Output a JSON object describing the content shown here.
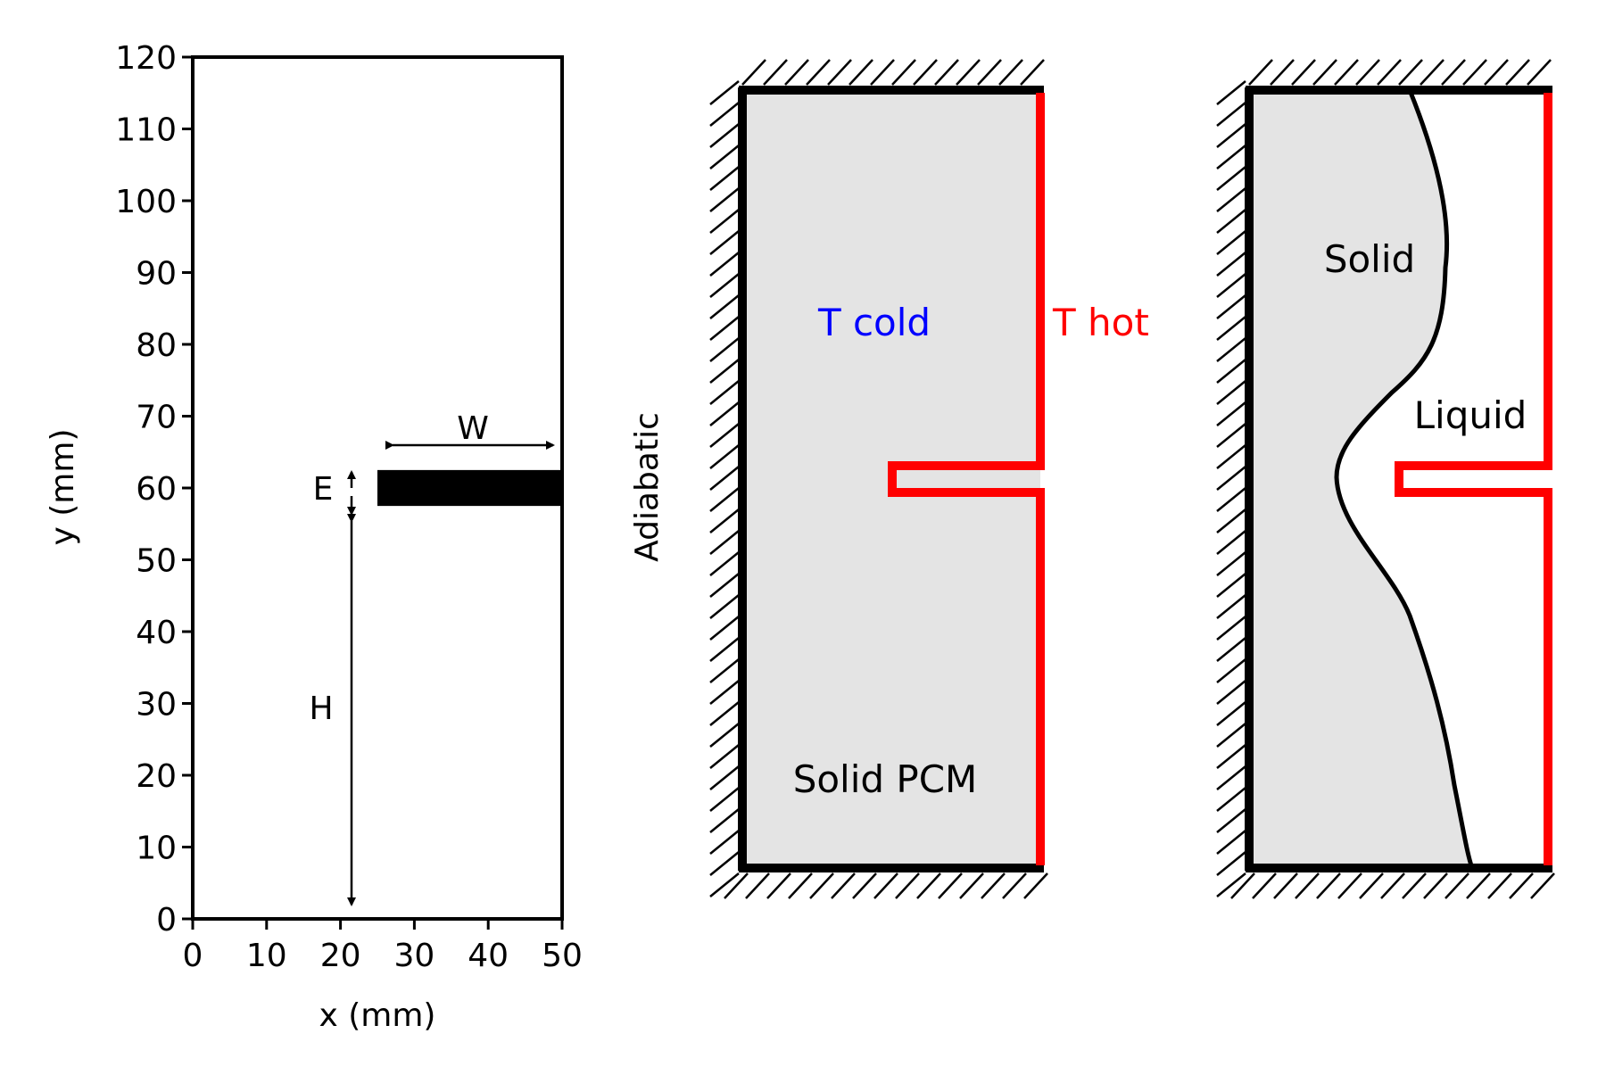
{
  "figure": {
    "panel_geometry": {
      "x_axis": {
        "label": "x (mm)",
        "range": [
          0,
          50
        ],
        "ticks": [
          0,
          10,
          20,
          30,
          40,
          50
        ]
      },
      "y_axis": {
        "label": "y (mm)",
        "range": [
          0,
          120
        ],
        "ticks": [
          0,
          10,
          20,
          30,
          40,
          50,
          60,
          70,
          80,
          90,
          100,
          110,
          120
        ]
      },
      "fin": {
        "x_start": 25,
        "x_end": 50,
        "y_bottom": 57.5,
        "y_top": 62.5
      },
      "dimensions": {
        "W": "W",
        "E": "E",
        "H": "H"
      }
    },
    "panel_boundary": {
      "adiabatic_label": "Adiabatic",
      "cold_label": "T cold",
      "hot_label": "T hot",
      "region_label": "Solid PCM",
      "colors": {
        "cold": "#0000ff",
        "hot": "#ff0000",
        "fill": "#e4e4e4"
      }
    },
    "panel_melting": {
      "solid_label": "Solid",
      "liquid_label": "Liquid"
    }
  }
}
